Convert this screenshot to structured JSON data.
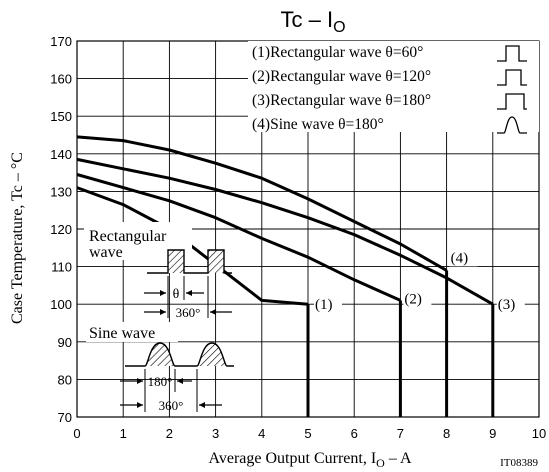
{
  "chart_data": {
    "type": "line",
    "title": "Tc – I",
    "title_sub": "O",
    "xlabel_prefix": "Average Output Current, I",
    "xlabel_sub": "O",
    "xlabel_suffix": " – A",
    "ylabel": "Case Temperature, Tc – °C",
    "xlim": [
      0,
      10
    ],
    "ylim": [
      70,
      170
    ],
    "x_ticks": [
      0,
      1,
      2,
      3,
      4,
      5,
      6,
      7,
      8,
      9,
      10
    ],
    "y_ticks": [
      70,
      80,
      90,
      100,
      110,
      120,
      130,
      140,
      150,
      160,
      170
    ],
    "grid": true,
    "legend_position": "top-right",
    "series": [
      {
        "name": "(1)Rectangular wave θ=60°",
        "tag": "(1)",
        "x": [
          0,
          1,
          2,
          3,
          4,
          5
        ],
        "y": [
          131,
          126.5,
          120,
          110.5,
          101,
          100
        ],
        "drop_to": 70
      },
      {
        "name": "(2)Rectangular wave θ=120°",
        "tag": "(2)",
        "x": [
          0,
          1,
          2,
          3,
          4,
          5,
          6,
          7
        ],
        "y": [
          134.5,
          131,
          127.5,
          123,
          117.5,
          112.5,
          106.5,
          101
        ],
        "drop_to": 70
      },
      {
        "name": "(3)Rectangular wave θ=180°",
        "tag": "(3)",
        "x": [
          0,
          1,
          2,
          3,
          4,
          5,
          6,
          7,
          8,
          9
        ],
        "y": [
          138.5,
          136,
          133.5,
          130.5,
          127,
          123,
          118.5,
          113,
          107,
          100
        ],
        "drop_to": 70
      },
      {
        "name": "(4)Sine wave θ=180°",
        "tag": "(4)",
        "x": [
          0,
          1,
          2,
          3,
          4,
          5,
          6,
          7,
          8
        ],
        "y": [
          144.5,
          143.5,
          141,
          137.5,
          133.5,
          128,
          122,
          116,
          109
        ],
        "drop_to": 70
      }
    ]
  },
  "inset": {
    "rect_label_1": "Rectangular",
    "rect_label_2": "wave",
    "theta_label": "θ",
    "rect_period_label": "360°",
    "sine_label": "Sine wave",
    "sine_half_label": "180°",
    "sine_period_label": "360°"
  },
  "figure_code": "IT08389"
}
